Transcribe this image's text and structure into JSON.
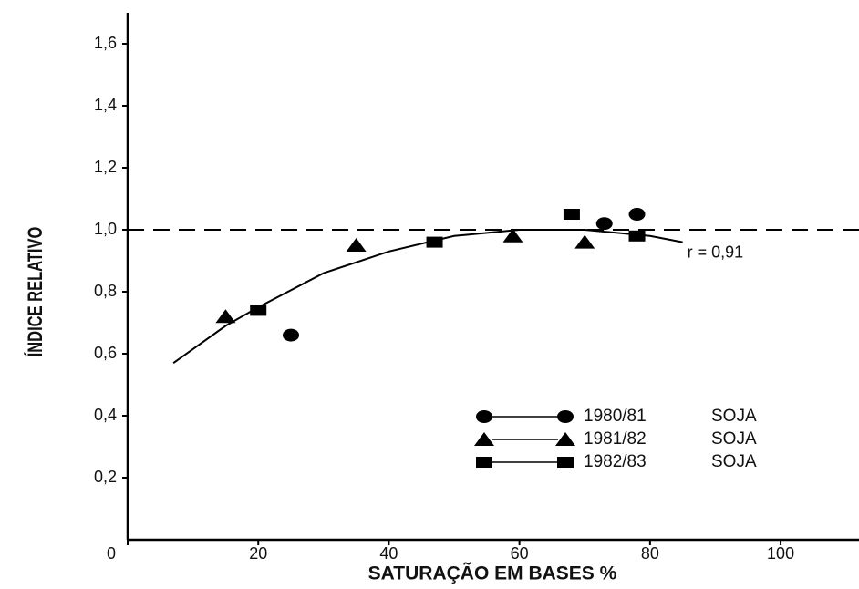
{
  "chart_data": {
    "type": "scatter",
    "xlabel": "SATURAÇÃO EM BASES %",
    "ylabel": "ÍNDICE RELATIVO",
    "xlim": [
      0,
      112
    ],
    "ylim": [
      0,
      1.7
    ],
    "xticks": [
      0,
      20,
      40,
      60,
      80,
      100
    ],
    "yticks": [
      {
        "value": 0.2,
        "label": "0,2"
      },
      {
        "value": 0.4,
        "label": "0,4"
      },
      {
        "value": 0.6,
        "label": "0,6"
      },
      {
        "value": 0.8,
        "label": "0,8"
      },
      {
        "value": 1.0,
        "label": "1,0"
      },
      {
        "value": 1.2,
        "label": "1,2"
      },
      {
        "value": 1.4,
        "label": "1,4"
      },
      {
        "value": 1.6,
        "label": "1,6"
      }
    ],
    "series": [
      {
        "name": "1980/81",
        "crop": "SOJA",
        "marker": "circle",
        "color": "#000000",
        "x": [
          25,
          73,
          78
        ],
        "values": [
          0.66,
          1.02,
          1.05
        ]
      },
      {
        "name": "1981/82",
        "crop": "SOJA",
        "marker": "triangle",
        "color": "#000000",
        "x": [
          15,
          35,
          59,
          70
        ],
        "values": [
          0.72,
          0.95,
          0.98,
          0.96
        ]
      },
      {
        "name": "1982/83",
        "crop": "SOJA",
        "marker": "square",
        "color": "#000000",
        "x": [
          20,
          47,
          68,
          78
        ],
        "values": [
          0.74,
          0.96,
          1.05,
          0.98
        ]
      }
    ],
    "curve": {
      "x": [
        7,
        15,
        20,
        30,
        40,
        50,
        60,
        70,
        80,
        85
      ],
      "values": [
        0.57,
        0.69,
        0.75,
        0.86,
        0.93,
        0.98,
        1.0,
        1.0,
        0.98,
        0.96
      ]
    },
    "reference_line": 1.0,
    "annotation": {
      "text": "r = 0,91",
      "x": 85,
      "y": 0.96
    }
  }
}
